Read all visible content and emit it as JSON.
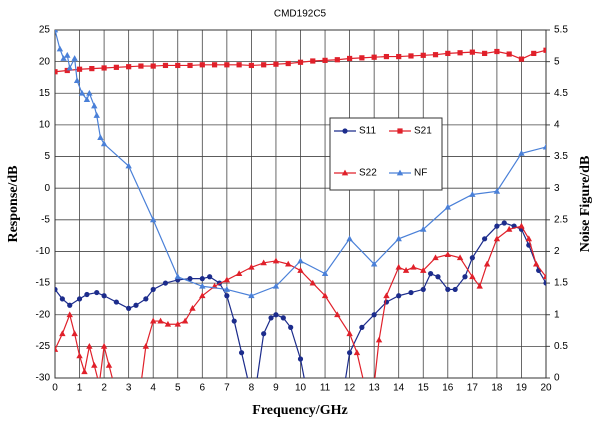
{
  "chart_data": {
    "type": "line",
    "title": "CMD192C5",
    "x_label": "Frequency/GHz",
    "y_label": "Response/dB",
    "y2_label": "Noise Figure/dB",
    "xlim": [
      0,
      20
    ],
    "xticks": [
      0,
      1,
      2,
      3,
      4,
      5,
      6,
      7,
      8,
      9,
      10,
      11,
      12,
      13,
      14,
      15,
      16,
      17,
      18,
      19,
      20
    ],
    "ylim": [
      -30,
      25
    ],
    "yticks": [
      -30,
      -25,
      -20,
      -15,
      -10,
      -5,
      0,
      5,
      10,
      15,
      20,
      25
    ],
    "y2lim": [
      0,
      5.5
    ],
    "y2ticks": [
      0,
      0.5,
      1,
      1.5,
      2,
      2.5,
      3,
      3.5,
      4,
      4.5,
      5,
      5.5
    ],
    "grid": true,
    "series": [
      {
        "name": "S11",
        "color": "#1c2c8c",
        "marker": "circle",
        "x": [
          0,
          0.3,
          0.6,
          1,
          1.3,
          1.7,
          2,
          2.5,
          3,
          3.3,
          3.7,
          4,
          4.5,
          5,
          5.5,
          6,
          6.3,
          6.7,
          7,
          7.3,
          7.6,
          7.9,
          8.2,
          8.5,
          8.8,
          9,
          9.3,
          9.6,
          10,
          10.2,
          11.8,
          12,
          12.5,
          13,
          13.5,
          14,
          14.5,
          15,
          15.3,
          15.6,
          16,
          16.3,
          16.7,
          17,
          17.5,
          18,
          18.3,
          18.7,
          19,
          19.3,
          19.7,
          20
        ],
        "values": [
          -16,
          -17.5,
          -18.5,
          -17.5,
          -16.8,
          -16.5,
          -17,
          -18,
          -19,
          -18.5,
          -17.5,
          -16,
          -15,
          -14.5,
          -14.3,
          -14.3,
          -14,
          -15,
          -17,
          -21,
          -26,
          -31,
          -31,
          -23,
          -20.5,
          -20,
          -20.5,
          -22,
          -27,
          -31,
          -31,
          -26,
          -22,
          -20,
          -18,
          -17,
          -16.5,
          -16,
          -13.5,
          -14,
          -16,
          -16,
          -14,
          -11,
          -8,
          -6,
          -5.5,
          -6,
          -6.5,
          -9,
          -13,
          -15
        ]
      },
      {
        "name": "S21",
        "color": "#e0202a",
        "marker": "square",
        "x": [
          0,
          0.5,
          1,
          1.5,
          2,
          2.5,
          3,
          3.5,
          4,
          4.5,
          5,
          5.5,
          6,
          6.5,
          7,
          7.5,
          8,
          8.5,
          9,
          9.5,
          10,
          10.5,
          11,
          11.5,
          12,
          12.5,
          13,
          13.5,
          14,
          14.5,
          15,
          15.5,
          16,
          16.5,
          17,
          17.5,
          18,
          18.5,
          19,
          19.5,
          20
        ],
        "values": [
          18.4,
          18.6,
          18.8,
          18.9,
          19.0,
          19.1,
          19.2,
          19.3,
          19.3,
          19.4,
          19.4,
          19.4,
          19.5,
          19.5,
          19.5,
          19.5,
          19.4,
          19.5,
          19.6,
          19.7,
          19.9,
          20.1,
          20.2,
          20.3,
          20.5,
          20.6,
          20.7,
          20.8,
          20.8,
          20.9,
          21.0,
          21.1,
          21.3,
          21.4,
          21.5,
          21.3,
          21.6,
          21.2,
          20.4,
          21.3,
          21.8
        ]
      },
      {
        "name": "S22",
        "color": "#e0202a",
        "marker": "triangle",
        "x": [
          0,
          0.3,
          0.6,
          0.8,
          1,
          1.2,
          1.4,
          1.6,
          1.8,
          2,
          2.2,
          2.4,
          3.5,
          3.7,
          4,
          4.3,
          4.6,
          5,
          5.3,
          5.6,
          6,
          6.5,
          7,
          7.5,
          8,
          8.5,
          9,
          9.5,
          10,
          10.5,
          11,
          11.5,
          12,
          12.3,
          12.6,
          13,
          13.2,
          13.5,
          14,
          14.3,
          14.6,
          15,
          15.5,
          16,
          16.5,
          17,
          17.3,
          17.6,
          18,
          18.5,
          19,
          19.3,
          19.6,
          20
        ],
        "values": [
          -25.5,
          -23,
          -20,
          -23,
          -26.5,
          -29,
          -25,
          -28,
          -31,
          -25,
          -28,
          -31,
          -31,
          -25,
          -21,
          -21,
          -21.5,
          -21.5,
          -21,
          -19,
          -17,
          -15.5,
          -14.5,
          -13.5,
          -12.5,
          -11.8,
          -11.5,
          -12,
          -13,
          -15,
          -17,
          -20,
          -23,
          -26,
          -31,
          -31,
          -24,
          -17,
          -12.5,
          -13,
          -12.5,
          -13,
          -11,
          -10.5,
          -11,
          -14,
          -15.5,
          -12,
          -8,
          -6.5,
          -6,
          -8,
          -12,
          -14
        ]
      },
      {
        "name": "NF",
        "color": "#4a80d8",
        "marker": "triangle",
        "axis": "y2",
        "x": [
          0,
          0.2,
          0.35,
          0.5,
          0.6,
          0.8,
          0.9,
          1.1,
          1.3,
          1.4,
          1.6,
          1.7,
          1.85,
          2,
          3,
          4,
          5,
          6,
          7,
          8,
          9,
          10,
          11,
          12,
          13,
          14,
          15,
          16,
          17,
          18,
          19,
          20
        ],
        "values": [
          5.5,
          5.2,
          5.05,
          5.1,
          4.9,
          5.05,
          4.7,
          4.5,
          4.4,
          4.5,
          4.3,
          4.15,
          3.8,
          3.7,
          3.35,
          2.5,
          1.6,
          1.45,
          1.4,
          1.3,
          1.45,
          1.85,
          1.65,
          2.2,
          1.8,
          2.2,
          2.35,
          2.7,
          2.9,
          2.95,
          3.55,
          3.65
        ]
      }
    ]
  }
}
